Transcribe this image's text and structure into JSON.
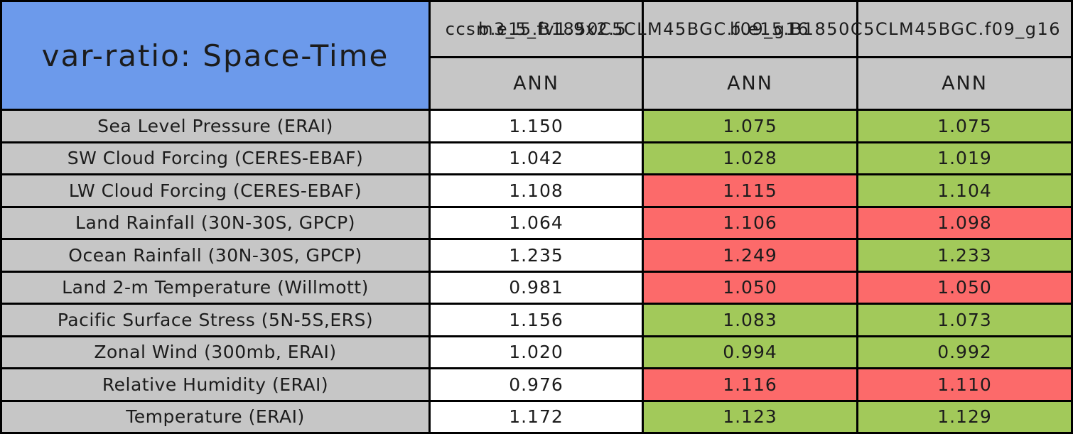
{
  "chart_data": {
    "type": "table",
    "title": "var-ratio: Space-Time",
    "models": [
      "ccsm3_5_fv1.9x2.5",
      "b.e15.B1850C5CLM45BGC.f09_g16",
      "b.e15.B1850C5CLM45BGC.f09_g16"
    ],
    "seasons": [
      "ANN",
      "ANN",
      "ANN"
    ],
    "rows": [
      {
        "variable": "Sea Level Pressure (ERAI)",
        "values": [
          "1.150",
          "1.075",
          "1.075"
        ],
        "colors": [
          "white",
          "green",
          "green"
        ]
      },
      {
        "variable": "SW Cloud Forcing (CERES-EBAF)",
        "values": [
          "1.042",
          "1.028",
          "1.019"
        ],
        "colors": [
          "white",
          "green",
          "green"
        ]
      },
      {
        "variable": "LW Cloud Forcing (CERES-EBAF)",
        "values": [
          "1.108",
          "1.115",
          "1.104"
        ],
        "colors": [
          "white",
          "red",
          "green"
        ]
      },
      {
        "variable": "Land Rainfall (30N-30S, GPCP)",
        "values": [
          "1.064",
          "1.106",
          "1.098"
        ],
        "colors": [
          "white",
          "red",
          "red"
        ]
      },
      {
        "variable": "Ocean Rainfall (30N-30S, GPCP)",
        "values": [
          "1.235",
          "1.249",
          "1.233"
        ],
        "colors": [
          "white",
          "red",
          "green"
        ]
      },
      {
        "variable": "Land 2-m Temperature (Willmott)",
        "values": [
          "0.981",
          "1.050",
          "1.050"
        ],
        "colors": [
          "white",
          "red",
          "red"
        ]
      },
      {
        "variable": "Pacific Surface Stress (5N-5S,ERS)",
        "values": [
          "1.156",
          "1.083",
          "1.073"
        ],
        "colors": [
          "white",
          "green",
          "green"
        ]
      },
      {
        "variable": "Zonal Wind (300mb, ERAI)",
        "values": [
          "1.020",
          "0.994",
          "0.992"
        ],
        "colors": [
          "white",
          "green",
          "green"
        ]
      },
      {
        "variable": "Relative Humidity (ERAI)",
        "values": [
          "0.976",
          "1.116",
          "1.110"
        ],
        "colors": [
          "white",
          "red",
          "red"
        ]
      },
      {
        "variable": "Temperature (ERAI)",
        "values": [
          "1.172",
          "1.123",
          "1.129"
        ],
        "colors": [
          "white",
          "green",
          "green"
        ]
      }
    ]
  },
  "colors": {
    "title_bg": "#6c9aeb",
    "header_bg": "#c6c6c6",
    "green": "#a2c95a",
    "red": "#fc6a6a",
    "white": "#ffffff",
    "border": "#000000"
  }
}
